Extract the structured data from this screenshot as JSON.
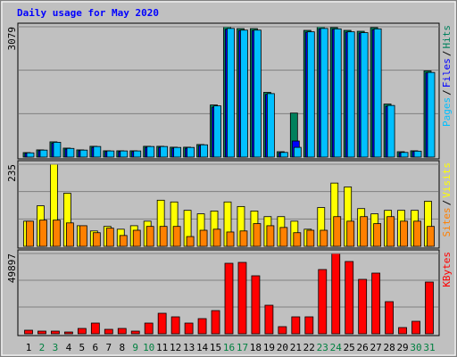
{
  "chart_data": [
    {
      "type": "bar",
      "title": "Daily usage for May 2020",
      "legend_separator": "/",
      "ylim": [
        0,
        3079
      ],
      "yticks": [
        3079
      ],
      "series": [
        {
          "name": "Hits",
          "color": "#00805c",
          "values": [
            106,
            170,
            360,
            212,
            170,
            255,
            149,
            149,
            149,
            255,
            255,
            234,
            234,
            297,
            1231,
            3079,
            3036,
            3036,
            1529,
            127,
            1040,
            2994,
            3079,
            3060,
            2994,
            2973,
            3060,
            1253,
            127,
            149,
            2038
          ]
        },
        {
          "name": "Files",
          "color": "#0000ff",
          "values": [
            90,
            150,
            330,
            190,
            150,
            230,
            130,
            130,
            130,
            230,
            230,
            210,
            210,
            270,
            1180,
            3020,
            2990,
            2990,
            1480,
            100,
            380,
            2950,
            3030,
            3020,
            2950,
            2930,
            3010,
            1200,
            100,
            130,
            1990
          ]
        },
        {
          "name": "Pages",
          "color": "#00c0ff",
          "values": [
            100,
            165,
            350,
            205,
            165,
            250,
            145,
            145,
            145,
            250,
            250,
            228,
            228,
            290,
            1210,
            3040,
            3000,
            3000,
            1500,
            110,
            230,
            2960,
            3040,
            3030,
            2960,
            2940,
            3030,
            1220,
            110,
            140,
            2000
          ]
        }
      ],
      "legend_order": [
        2,
        1,
        0
      ]
    },
    {
      "type": "bar",
      "legend_separator": "/",
      "ylim": [
        0,
        235
      ],
      "yticks": [
        235
      ],
      "series": [
        {
          "name": "Visits",
          "color": "#ffff00",
          "values": [
            72,
            116,
            235,
            152,
            59,
            44,
            57,
            49,
            59,
            72,
            132,
            127,
            103,
            93,
            101,
            127,
            114,
            101,
            85,
            85,
            72,
            49,
            111,
            181,
            170,
            108,
            93,
            103,
            103,
            103,
            129
          ]
        },
        {
          "name": "Sites",
          "color": "#ff8000",
          "values": [
            72,
            75,
            75,
            67,
            59,
            39,
            52,
            31,
            46,
            57,
            57,
            57,
            28,
            46,
            49,
            41,
            44,
            65,
            59,
            54,
            39,
            46,
            46,
            85,
            72,
            85,
            65,
            85,
            72,
            72,
            57
          ]
        }
      ],
      "legend_order": [
        1,
        0
      ]
    },
    {
      "type": "bar",
      "ylim": [
        0,
        49897
      ],
      "yticks": [
        49897
      ],
      "categories": [
        "1",
        "2",
        "3",
        "4",
        "5",
        "6",
        "7",
        "8",
        "9",
        "10",
        "11",
        "12",
        "13",
        "14",
        "15",
        "16",
        "17",
        "18",
        "19",
        "20",
        "21",
        "22",
        "23",
        "24",
        "25",
        "26",
        "27",
        "28",
        "29",
        "30",
        "31"
      ],
      "category_colors": [
        "#000000",
        "#008040",
        "#008040",
        "#000000",
        "#000000",
        "#000000",
        "#000000",
        "#000000",
        "#008040",
        "#008040",
        "#000000",
        "#000000",
        "#000000",
        "#000000",
        "#000000",
        "#008040",
        "#008040",
        "#000000",
        "#000000",
        "#000000",
        "#000000",
        "#000000",
        "#008040",
        "#008040",
        "#000000",
        "#000000",
        "#000000",
        "#000000",
        "#000000",
        "#008040",
        "#008040"
      ],
      "series": [
        {
          "name": "KBytes",
          "color": "#ff0000",
          "values": [
            2218,
            1663,
            1663,
            1109,
            3326,
            6653,
            2772,
            3326,
            1663,
            6653,
            12751,
            10534,
            6653,
            9425,
            14414,
            43800,
            44354,
            36037,
            17741,
            4435,
            10534,
            10534,
            39918,
            49897,
            44908,
            33819,
            37700,
            19960,
            3881,
            7762,
            32156
          ]
        }
      ],
      "legend_order": [
        0
      ]
    }
  ]
}
